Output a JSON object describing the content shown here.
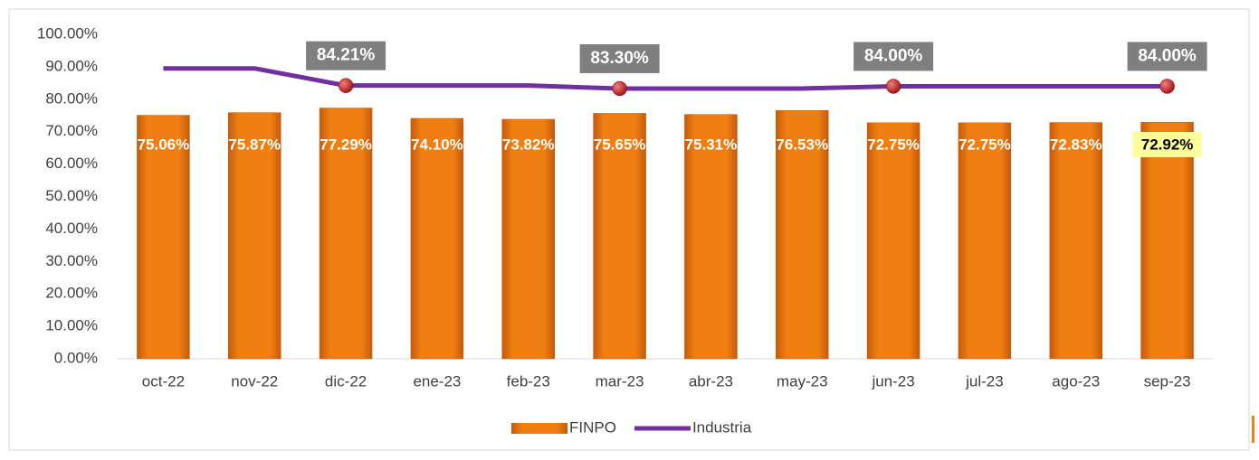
{
  "chart_data": {
    "type": "bar",
    "categories": [
      "oct-22",
      "nov-22",
      "dic-22",
      "ene-23",
      "feb-23",
      "mar-23",
      "abr-23",
      "may-23",
      "jun-23",
      "jul-23",
      "ago-23",
      "sep-23"
    ],
    "series": [
      {
        "name": "FINPO",
        "type": "bar",
        "color": "#f07f12",
        "values": [
          75.06,
          75.87,
          77.29,
          74.1,
          73.82,
          75.65,
          75.31,
          76.53,
          72.75,
          72.75,
          72.83,
          72.92
        ],
        "value_labels": [
          "75.06%",
          "75.87%",
          "77.29%",
          "74.10%",
          "73.82%",
          "75.65%",
          "75.31%",
          "76.53%",
          "72.75%",
          "72.75%",
          "72.83%",
          "72.92%"
        ]
      },
      {
        "name": "Industria",
        "type": "line",
        "color": "#7030a0",
        "values": [
          89.5,
          89.5,
          84.21,
          84.21,
          84.21,
          83.3,
          83.3,
          83.3,
          84.0,
          84.0,
          84.0,
          84.0
        ],
        "value_labels": [
          null,
          null,
          "84.21%",
          null,
          null,
          "83.30%",
          null,
          null,
          "84.00%",
          null,
          null,
          "84.00%"
        ]
      }
    ],
    "ylim": [
      0,
      100
    ],
    "yticks": [
      {
        "value": 0,
        "label": "0.00%"
      },
      {
        "value": 10,
        "label": "10.00%"
      },
      {
        "value": 20,
        "label": "20.00%"
      },
      {
        "value": 30,
        "label": "30.00%"
      },
      {
        "value": 40,
        "label": "40.00%"
      },
      {
        "value": 50,
        "label": "50.00%"
      },
      {
        "value": 60,
        "label": "60.00%"
      },
      {
        "value": 70,
        "label": "70.00%"
      },
      {
        "value": 80,
        "label": "80.00%"
      },
      {
        "value": 90,
        "label": "90.00%"
      },
      {
        "value": 100,
        "label": "100.00%"
      }
    ],
    "grid": false,
    "legend": "bottom"
  }
}
